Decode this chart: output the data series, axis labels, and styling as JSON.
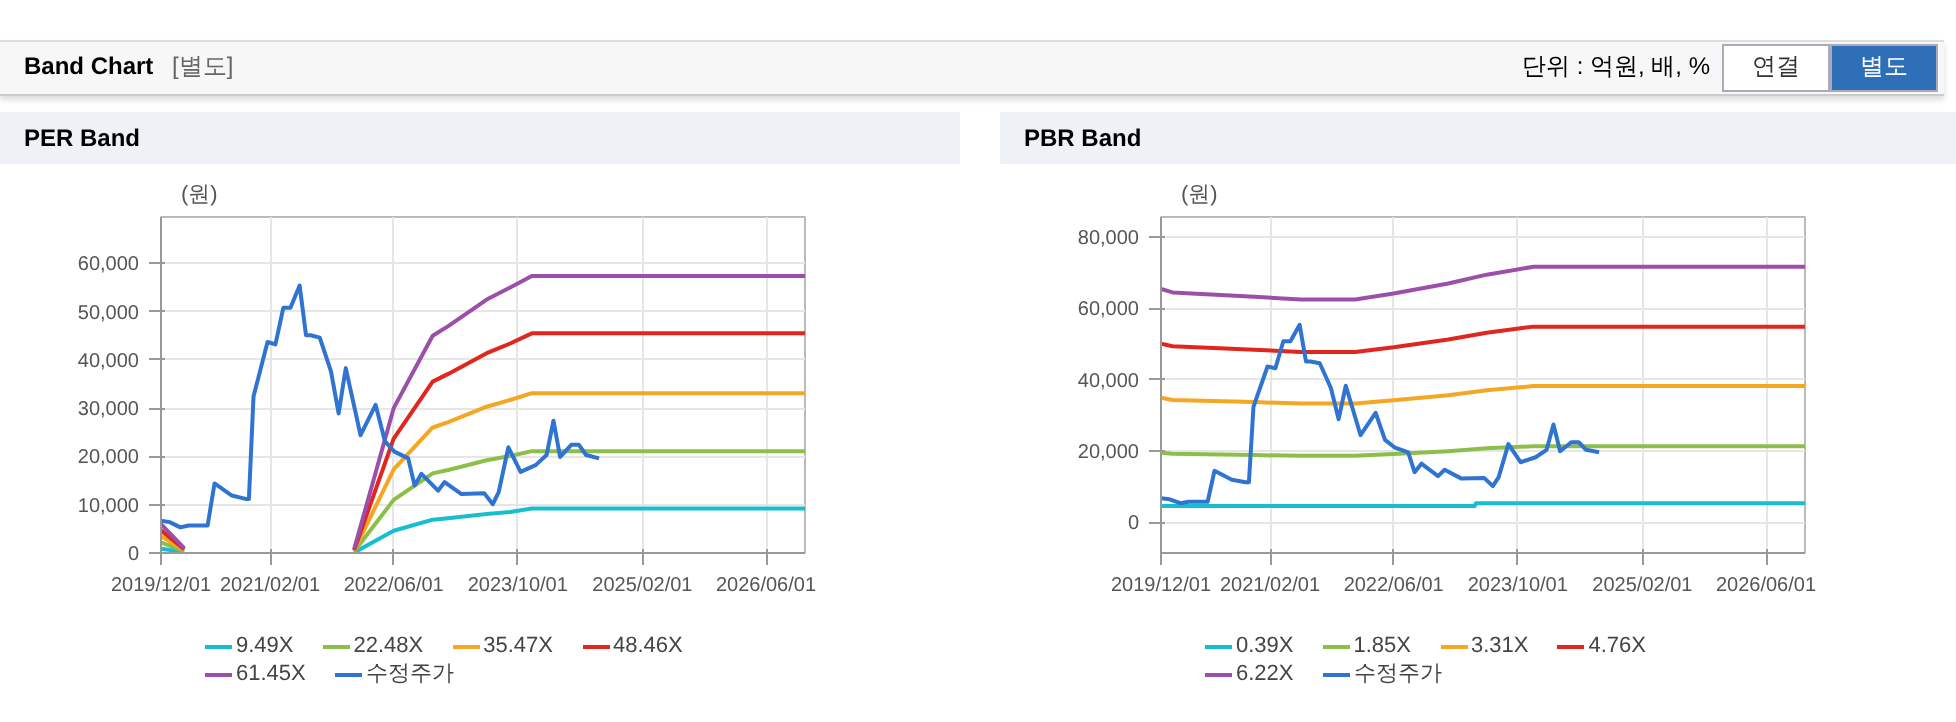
{
  "chart_data": [
    {
      "type": "other",
      "title": "Band Chart",
      "subtitle": "[별도]",
      "annotations": [
        "단위 : 억원, 배, %",
        "연결",
        "별도"
      ]
    },
    {
      "type": "line",
      "title": "PER Band",
      "ylabel": "(원)",
      "xlim": [
        "2019-12-01",
        "2026-11-01"
      ],
      "ylim": [
        0,
        69600
      ],
      "xticks": [
        {
          "value": "2019-12-01",
          "label": "2019/12/01"
        },
        {
          "value": "2021-02-01",
          "label": "2021/02/01"
        },
        {
          "value": "2022-06-01",
          "label": "2022/06/01"
        },
        {
          "value": "2023-10-01",
          "label": "2023/10/01"
        },
        {
          "value": "2025-02-01",
          "label": "2025/02/01"
        },
        {
          "value": "2026-06-01",
          "label": "2026/06/01"
        }
      ],
      "yticks": [
        0,
        {
          "value": 10000,
          "label": "10,000"
        },
        {
          "value": 20000,
          "label": "20,000"
        },
        {
          "value": 30000,
          "label": "30,000"
        },
        {
          "value": 40000,
          "label": "40,000"
        },
        {
          "value": 50000,
          "label": "50,000"
        },
        {
          "value": 60000,
          "label": "60,000"
        }
      ],
      "grid": true,
      "legend": "bottom",
      "marker": "none",
      "line_style": "solid",
      "series": [
        {
          "name": "9.49X",
          "color": "#17becf",
          "x": [
            "2019-12-01",
            "2020-03-01",
            "2021-01-01",
            "2021-12-28",
            "2022-06-01",
            "2022-11-01",
            "2023-01-01",
            "2023-06-01",
            "2023-09-01",
            "2023-11-25",
            "2026-11-01"
          ],
          "values": [
            900,
            200,
            null,
            100,
            4600,
            6900,
            7200,
            8100,
            8500,
            9200,
            9200
          ]
        },
        {
          "name": "22.48X",
          "color": "#8cbf4a",
          "x": [
            "2019-12-01",
            "2020-03-01",
            "2021-01-01",
            "2021-12-28",
            "2022-06-01",
            "2022-11-01",
            "2023-01-01",
            "2023-06-01",
            "2023-09-01",
            "2023-11-25",
            "2026-11-01"
          ],
          "values": [
            2200,
            400,
            null,
            300,
            11000,
            16500,
            17200,
            19200,
            20100,
            21100,
            21100
          ]
        },
        {
          "name": "35.47X",
          "color": "#f5a623",
          "x": [
            "2019-12-01",
            "2020-03-01",
            "2021-01-01",
            "2021-12-28",
            "2022-06-01",
            "2022-11-01",
            "2023-01-01",
            "2023-06-01",
            "2023-09-01",
            "2023-11-25",
            "2026-11-01"
          ],
          "values": [
            3500,
            600,
            null,
            500,
            17300,
            26000,
            27100,
            30300,
            31700,
            33100,
            33100
          ]
        },
        {
          "name": "48.46X",
          "color": "#e0261f",
          "x": [
            "2019-12-01",
            "2020-03-01",
            "2021-01-01",
            "2021-12-28",
            "2022-06-01",
            "2022-11-01",
            "2023-01-01",
            "2023-06-01",
            "2023-09-01",
            "2023-11-25",
            "2026-11-01"
          ],
          "values": [
            4700,
            800,
            null,
            600,
            23700,
            35500,
            37100,
            41400,
            43400,
            45500,
            45500
          ]
        },
        {
          "name": "61.45X",
          "color": "#9b4fa8",
          "x": [
            "2019-12-01",
            "2020-03-01",
            "2021-01-01",
            "2021-12-28",
            "2022-06-01",
            "2022-11-01",
            "2023-01-01",
            "2023-06-01",
            "2023-09-01",
            "2023-11-25",
            "2026-11-01"
          ],
          "values": [
            6000,
            1000,
            null,
            800,
            30000,
            45000,
            47000,
            52500,
            55000,
            57400,
            57400
          ]
        },
        {
          "name": "수정주가",
          "color": "#2f74d0",
          "x": [
            "2019-12-01",
            "2020-01-04",
            "2020-02-15",
            "2020-03-18",
            "2020-06-01",
            "2020-06-28",
            "2020-09-04",
            "2020-10-28",
            "2020-11-10",
            "2020-11-28",
            "2021-01-22",
            "2021-02-22",
            "2021-03-25",
            "2021-04-22",
            "2021-05-28",
            "2021-06-22",
            "2021-07-10",
            "2021-08-15",
            "2021-09-28",
            "2021-10-28",
            "2021-11-25",
            "2022-01-22",
            "2022-03-22",
            "2022-04-28",
            "2022-06-04",
            "2022-07-28",
            "2022-08-22",
            "2022-09-18",
            "2022-11-22",
            "2022-12-18",
            "2023-02-22",
            "2023-05-22",
            "2023-06-25",
            "2023-07-18",
            "2023-08-25",
            "2023-10-12",
            "2023-12-10",
            "2024-01-22",
            "2024-02-18",
            "2024-03-15",
            "2024-04-28",
            "2024-05-28",
            "2024-06-25",
            "2024-08-15"
          ],
          "values": [
            6700,
            6400,
            5300,
            5700,
            5700,
            14400,
            11900,
            11200,
            11200,
            32400,
            43700,
            43200,
            50800,
            50800,
            55400,
            45100,
            45100,
            44600,
            37600,
            28900,
            38300,
            24400,
            30700,
            23100,
            21000,
            19600,
            14000,
            16400,
            12900,
            14700,
            12200,
            12400,
            10100,
            12600,
            21900,
            16800,
            18200,
            20300,
            27400,
            19900,
            22400,
            22400,
            20300,
            19600
          ]
        }
      ]
    },
    {
      "type": "line",
      "title": "PBR Band",
      "ylabel": "(원)",
      "xlim": [
        "2019-12-01",
        "2026-11-01"
      ],
      "ylim": [
        -8700,
        85700
      ],
      "xticks": [
        {
          "value": "2019-12-01",
          "label": "2019/12/01"
        },
        {
          "value": "2021-02-01",
          "label": "2021/02/01"
        },
        {
          "value": "2022-06-01",
          "label": "2022/06/01"
        },
        {
          "value": "2023-10-01",
          "label": "2023/10/01"
        },
        {
          "value": "2025-02-01",
          "label": "2025/02/01"
        },
        {
          "value": "2026-06-01",
          "label": "2026/06/01"
        }
      ],
      "yticks": [
        0,
        {
          "value": 20000,
          "label": "20,000"
        },
        {
          "value": 40000,
          "label": "40,000"
        },
        {
          "value": 60000,
          "label": "60,000"
        },
        {
          "value": 80000,
          "label": "80,000"
        }
      ],
      "grid": true,
      "legend": "bottom",
      "marker": "none",
      "line_style": "solid",
      "series": [
        {
          "name": "0.39X",
          "color": "#17becf",
          "x": [
            "2019-12-01",
            "2023-04-15",
            "2023-04-20",
            "2026-11-01"
          ],
          "values": [
            4500,
            4500,
            5300,
            5300
          ]
        },
        {
          "name": "1.85X",
          "color": "#8cbf4a",
          "x": [
            "2019-12-01",
            "2020-01-15",
            "2020-12-01",
            "2021-06-01",
            "2022-01-01",
            "2022-06-01",
            "2023-01-01",
            "2023-06-01",
            "2023-12-01",
            "2026-11-01"
          ],
          "values": [
            19500,
            19200,
            18800,
            18600,
            18600,
            19100,
            19900,
            20700,
            21300,
            21300
          ]
        },
        {
          "name": "3.31X",
          "color": "#f5a623",
          "x": [
            "2019-12-01",
            "2020-01-15",
            "2020-12-01",
            "2021-06-01",
            "2022-01-01",
            "2022-06-01",
            "2023-01-01",
            "2023-06-01",
            "2023-12-01",
            "2026-11-01"
          ],
          "values": [
            34900,
            34300,
            33700,
            33300,
            33300,
            34200,
            35600,
            37000,
            38200,
            38200
          ]
        },
        {
          "name": "4.76X",
          "color": "#e0261f",
          "x": [
            "2019-12-01",
            "2020-01-15",
            "2020-12-01",
            "2021-06-01",
            "2022-01-01",
            "2022-06-01",
            "2023-01-01",
            "2023-06-01",
            "2023-12-01",
            "2026-11-01"
          ],
          "values": [
            50100,
            49400,
            48400,
            47800,
            47800,
            49100,
            51300,
            53200,
            54900,
            54900
          ]
        },
        {
          "name": "6.22X",
          "color": "#9b4fa8",
          "x": [
            "2019-12-01",
            "2020-01-15",
            "2020-12-01",
            "2021-06-01",
            "2022-01-01",
            "2022-06-01",
            "2023-01-01",
            "2023-06-01",
            "2023-12-01",
            "2026-11-01"
          ],
          "values": [
            65500,
            64500,
            63300,
            62500,
            62500,
            64200,
            67000,
            69500,
            71700,
            71700
          ]
        },
        {
          "name": "수정주가",
          "color": "#2f74d0",
          "x": [
            "2019-12-01",
            "2020-01-04",
            "2020-02-15",
            "2020-03-18",
            "2020-06-01",
            "2020-06-28",
            "2020-09-04",
            "2020-10-28",
            "2020-11-10",
            "2020-11-28",
            "2021-01-22",
            "2021-02-22",
            "2021-03-25",
            "2021-04-22",
            "2021-05-28",
            "2021-06-22",
            "2021-07-10",
            "2021-08-15",
            "2021-09-28",
            "2021-10-28",
            "2021-11-25",
            "2022-01-22",
            "2022-03-22",
            "2022-04-28",
            "2022-06-04",
            "2022-07-28",
            "2022-08-22",
            "2022-09-18",
            "2022-11-22",
            "2022-12-18",
            "2023-02-22",
            "2023-05-22",
            "2023-06-25",
            "2023-07-18",
            "2023-08-25",
            "2023-10-12",
            "2023-12-10",
            "2024-01-22",
            "2024-02-18",
            "2024-03-15",
            "2024-04-28",
            "2024-05-28",
            "2024-06-25",
            "2024-08-15"
          ],
          "values": [
            6700,
            6400,
            5300,
            5700,
            5700,
            14400,
            11900,
            11200,
            11200,
            32400,
            43700,
            43200,
            50800,
            50800,
            55400,
            45100,
            45100,
            44600,
            37600,
            28900,
            38300,
            24400,
            30700,
            23100,
            21000,
            19600,
            14000,
            16400,
            12900,
            14700,
            12200,
            12400,
            10100,
            12600,
            21900,
            16800,
            18200,
            20300,
            27400,
            19900,
            22400,
            22400,
            20300,
            19600
          ]
        }
      ]
    }
  ]
}
